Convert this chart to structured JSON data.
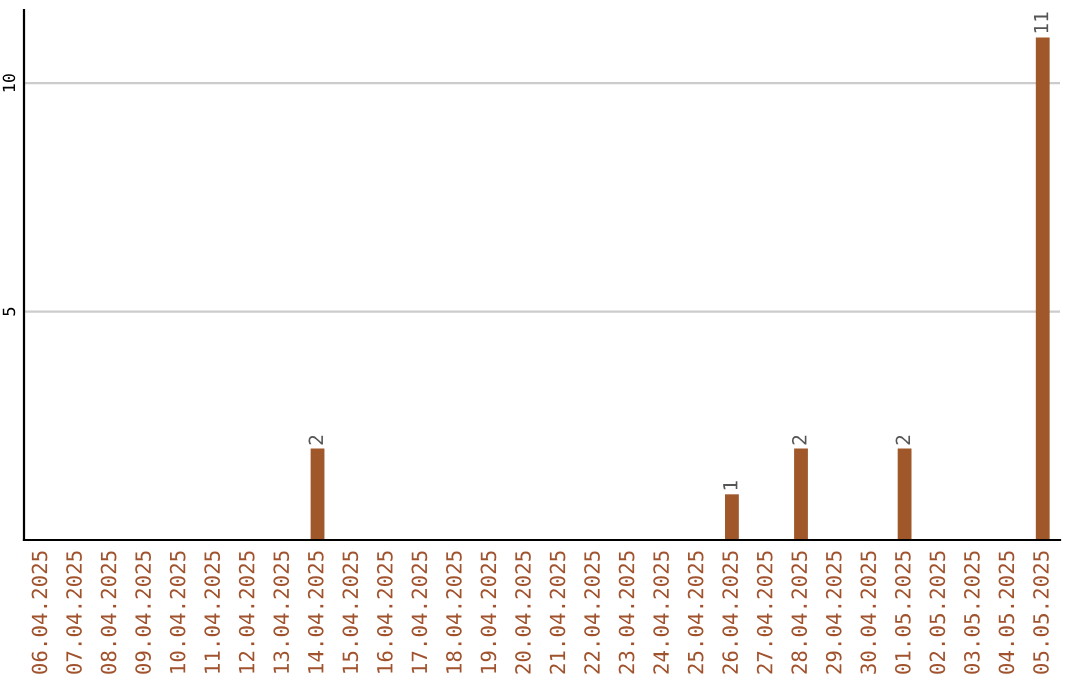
{
  "chart_data": {
    "type": "bar",
    "categories": [
      "06.04.2025",
      "07.04.2025",
      "08.04.2025",
      "09.04.2025",
      "10.04.2025",
      "11.04.2025",
      "12.04.2025",
      "13.04.2025",
      "14.04.2025",
      "15.04.2025",
      "16.04.2025",
      "17.04.2025",
      "18.04.2025",
      "19.04.2025",
      "20.04.2025",
      "21.04.2025",
      "22.04.2025",
      "23.04.2025",
      "24.04.2025",
      "25.04.2025",
      "26.04.2025",
      "27.04.2025",
      "28.04.2025",
      "29.04.2025",
      "30.04.2025",
      "01.05.2025",
      "02.05.2025",
      "03.05.2025",
      "04.05.2025",
      "05.05.2025"
    ],
    "values": [
      0,
      0,
      0,
      0,
      0,
      0,
      0,
      0,
      2,
      0,
      0,
      0,
      0,
      0,
      0,
      0,
      0,
      0,
      0,
      0,
      1,
      0,
      2,
      0,
      0,
      2,
      0,
      0,
      0,
      11
    ],
    "value_labels": [
      null,
      null,
      null,
      null,
      null,
      null,
      null,
      null,
      "2",
      null,
      null,
      null,
      null,
      null,
      null,
      null,
      null,
      null,
      null,
      null,
      "1",
      null,
      "2",
      null,
      null,
      "2",
      null,
      null,
      null,
      "11"
    ],
    "color": "#a0582b",
    "ylim": [
      0,
      11.6
    ],
    "yticks": [
      5,
      10
    ],
    "grid": "y"
  }
}
